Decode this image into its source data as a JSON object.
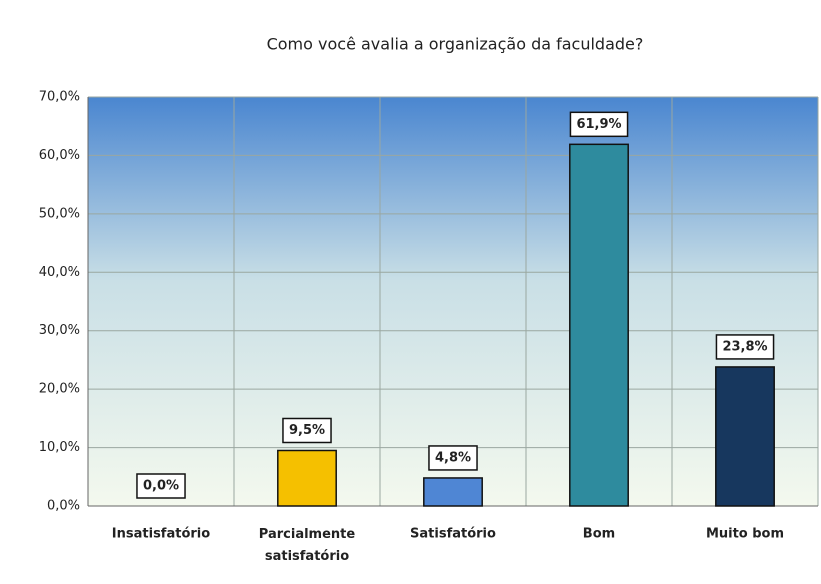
{
  "chart_data": {
    "type": "bar",
    "title": "Como você avalia a organização da faculdade?",
    "categories": [
      "Insatisfatório",
      "Parcialmente satisfatório",
      "Satisfatório",
      "Bom",
      "Muito bom"
    ],
    "values": [
      0.0,
      9.5,
      4.8,
      61.9,
      23.8
    ],
    "value_labels": [
      "0,0%",
      "9,5%",
      "4,8%",
      "61,9%",
      "23,8%"
    ],
    "colors": [
      "#f5c000",
      "#f5c000",
      "#4f86d4",
      "#2e8b9e",
      "#17375e"
    ],
    "ylim": [
      0,
      70
    ],
    "yticks": [
      {
        "value": 0,
        "label": "0,0%"
      },
      {
        "value": 10,
        "label": "10,0%"
      },
      {
        "value": 20,
        "label": "20,0%"
      },
      {
        "value": 30,
        "label": "30,0%"
      },
      {
        "value": 40,
        "label": "40,0%"
      },
      {
        "value": 50,
        "label": "50,0%"
      },
      {
        "value": 60,
        "label": "60,0%"
      },
      {
        "value": 70,
        "label": "70,0%"
      }
    ],
    "grid": true
  }
}
